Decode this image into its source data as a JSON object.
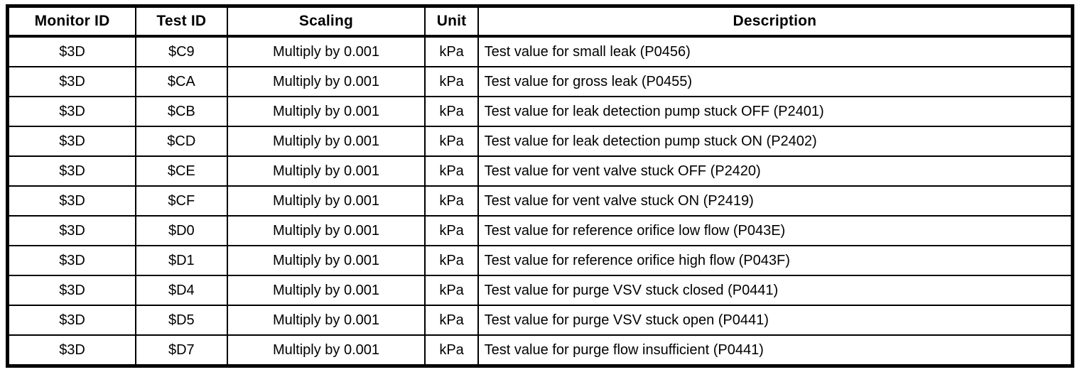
{
  "table": {
    "name": "monitor-test-id-scaling-table",
    "columns": {
      "monitor_id": "Monitor ID",
      "test_id": "Test ID",
      "scaling": "Scaling",
      "unit": "Unit",
      "description": "Description"
    },
    "rows": [
      {
        "monitor_id": "$3D",
        "test_id": "$C9",
        "scaling": "Multiply by 0.001",
        "unit": "kPa",
        "description": "Test value for small leak (P0456)"
      },
      {
        "monitor_id": "$3D",
        "test_id": "$CA",
        "scaling": "Multiply by 0.001",
        "unit": "kPa",
        "description": "Test value for gross leak (P0455)"
      },
      {
        "monitor_id": "$3D",
        "test_id": "$CB",
        "scaling": "Multiply by 0.001",
        "unit": "kPa",
        "description": "Test value for leak detection pump stuck OFF (P2401)"
      },
      {
        "monitor_id": "$3D",
        "test_id": "$CD",
        "scaling": "Multiply by 0.001",
        "unit": "kPa",
        "description": "Test value for leak detection pump stuck ON (P2402)"
      },
      {
        "monitor_id": "$3D",
        "test_id": "$CE",
        "scaling": "Multiply by 0.001",
        "unit": "kPa",
        "description": "Test value for vent valve stuck OFF (P2420)"
      },
      {
        "monitor_id": "$3D",
        "test_id": "$CF",
        "scaling": "Multiply by 0.001",
        "unit": "kPa",
        "description": "Test value for vent valve stuck ON (P2419)"
      },
      {
        "monitor_id": "$3D",
        "test_id": "$D0",
        "scaling": "Multiply by 0.001",
        "unit": "kPa",
        "description": "Test value for reference orifice low flow (P043E)"
      },
      {
        "monitor_id": "$3D",
        "test_id": "$D1",
        "scaling": "Multiply by 0.001",
        "unit": "kPa",
        "description": "Test value for reference orifice high flow (P043F)"
      },
      {
        "monitor_id": "$3D",
        "test_id": "$D4",
        "scaling": "Multiply by 0.001",
        "unit": "kPa",
        "description": "Test value for purge VSV stuck closed (P0441)"
      },
      {
        "monitor_id": "$3D",
        "test_id": "$D5",
        "scaling": "Multiply by 0.001",
        "unit": "kPa",
        "description": "Test value for purge VSV stuck open (P0441)"
      },
      {
        "monitor_id": "$3D",
        "test_id": "$D7",
        "scaling": "Multiply by 0.001",
        "unit": "kPa",
        "description": "Test value for purge flow insufficient (P0441)"
      }
    ],
    "colors": {
      "border": "#000000",
      "background": "#ffffff",
      "text": "#000000"
    }
  }
}
